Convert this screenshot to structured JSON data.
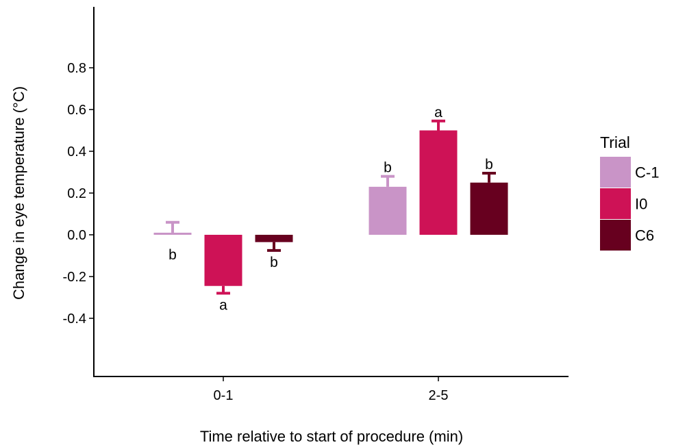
{
  "chart_data": {
    "type": "bar",
    "categories": [
      "0-1",
      "2-5"
    ],
    "xlabel": "Time relative to start of procedure (min)",
    "ylabel": "Change in eye temperature (°C)",
    "ylim": [
      -0.6,
      1.1
    ],
    "yticks": [
      -0.4,
      -0.2,
      0.0,
      0.2,
      0.4,
      0.6,
      0.8
    ],
    "ytick_labels": [
      "-0.4",
      "-0.2",
      "0.0",
      "0.2",
      "0.4",
      "0.6",
      "0.8"
    ],
    "legend": {
      "title": "Trial",
      "position": "right"
    },
    "grid": false,
    "series": [
      {
        "name": "C-1",
        "color": "#c994c7",
        "values": [
          0.01,
          0.23
        ],
        "errors": [
          0.05,
          0.05
        ],
        "sig_labels": [
          "b",
          "b"
        ]
      },
      {
        "name": "I0",
        "color": "#ce1256",
        "values": [
          -0.245,
          0.5
        ],
        "errors": [
          0.035,
          0.045
        ],
        "sig_labels": [
          "a",
          "a"
        ]
      },
      {
        "name": "C6",
        "color": "#67001f",
        "values": [
          -0.035,
          0.25
        ],
        "errors": [
          0.04,
          0.045
        ],
        "sig_labels": [
          "b",
          "b"
        ]
      }
    ]
  }
}
